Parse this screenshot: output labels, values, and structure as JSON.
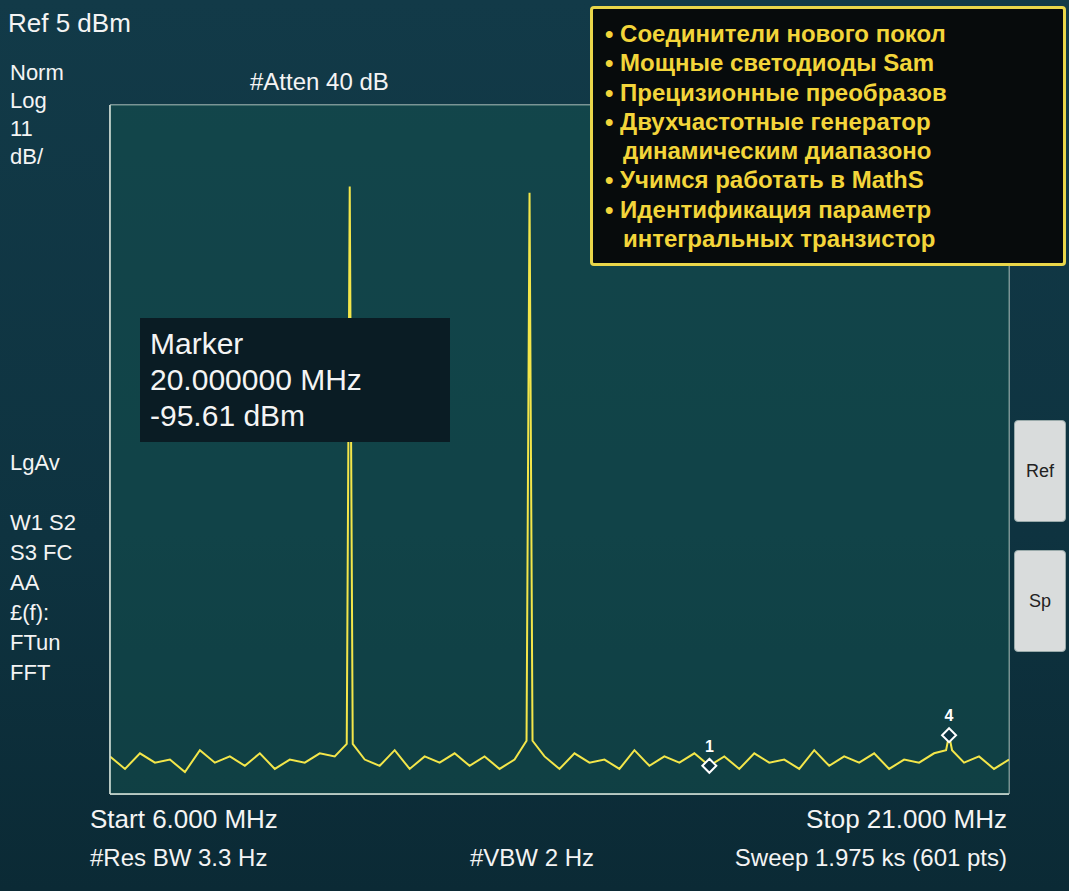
{
  "chart_data": {
    "type": "line",
    "color": "#f3e64a",
    "x": [
      6,
      6.25,
      6.5,
      6.75,
      7,
      7.25,
      7.5,
      7.75,
      8,
      8.25,
      8.5,
      8.75,
      9,
      9.25,
      9.5,
      9.75,
      9.95,
      10,
      10.05,
      10.25,
      10.5,
      10.75,
      11,
      11.25,
      11.5,
      11.75,
      12,
      12.25,
      12.5,
      12.75,
      12.95,
      13,
      13.05,
      13.25,
      13.5,
      13.75,
      14,
      14.25,
      14.5,
      14.75,
      15,
      15.25,
      15.5,
      15.75,
      16,
      16.25,
      16.5,
      16.75,
      17,
      17.25,
      17.5,
      17.75,
      18,
      18.25,
      18.5,
      18.75,
      19,
      19.25,
      19.5,
      19.75,
      19.95,
      20,
      20.05,
      20.25,
      20.5,
      20.75,
      21
    ],
    "values": [
      -99,
      -101,
      -98.5,
      -100,
      -99.5,
      -101.5,
      -98,
      -100,
      -99,
      -100.5,
      -98.5,
      -101,
      -99.5,
      -100,
      -98.5,
      -99,
      -97,
      -8,
      -97,
      -99.5,
      -100.5,
      -98,
      -101,
      -99,
      -100,
      -98.5,
      -100.5,
      -99,
      -101,
      -99.5,
      -96.5,
      -9,
      -96.5,
      -99,
      -101,
      -98.5,
      -100,
      -99.5,
      -101,
      -98,
      -100.5,
      -99,
      -100,
      -98.5,
      -100.5,
      -99,
      -101,
      -98.5,
      -100,
      -99.5,
      -101,
      -98,
      -100.5,
      -99,
      -100,
      -98.5,
      -101,
      -99.5,
      -100,
      -98.5,
      -98,
      -95.61,
      -98,
      -100,
      -99,
      -101,
      -99.5
    ],
    "xlim": [
      6,
      21
    ],
    "ylim": [
      -105,
      5
    ],
    "xticks": [
      6,
      7.5,
      9,
      10.5,
      12,
      13.5,
      15,
      16.5,
      18,
      19.5,
      21
    ],
    "yticks": [
      5,
      -6,
      -17,
      -28,
      -39,
      -50,
      -61,
      -72,
      -83,
      -94,
      -105
    ],
    "grid": true,
    "tick_labels": false,
    "markers": [
      {
        "label": "1",
        "x": 16,
        "y": -100.5
      },
      {
        "label": "4",
        "x": 20,
        "y": -95.61
      }
    ],
    "marker_readout": {
      "title": "Marker",
      "frequency": "20.000000 MHz",
      "level": "-95.61 dBm"
    },
    "header": {
      "reference": "Ref 5 dBm",
      "attenuation": "#Atten 40 dB"
    },
    "left_labels": [
      "Norm",
      "Log",
      "11",
      "dB/",
      "LgAv",
      "W1 S2",
      "S3 FC",
      "AA",
      "£(f):",
      "FTun",
      "FFT"
    ],
    "footer": {
      "start": "Start 6.000 MHz",
      "stop": "Stop 21.000 MHz",
      "rbw": "#Res BW 3.3 Hz",
      "vbw": "#VBW 2 Hz",
      "sweep": "Sweep 1.975 ks (601 pts)"
    },
    "softkeys": [
      "Ref",
      "Sp"
    ],
    "overlay": [
      "• Соединители нового покол",
      "• Мощные светодиоды Sam",
      "• Прецизионные преобразов",
      "• Двухчастотные генератор",
      "динамическим диапазоно",
      "• Учимся работать в MathS",
      "• Идентификация параметр",
      "интегральных транзистор"
    ]
  }
}
